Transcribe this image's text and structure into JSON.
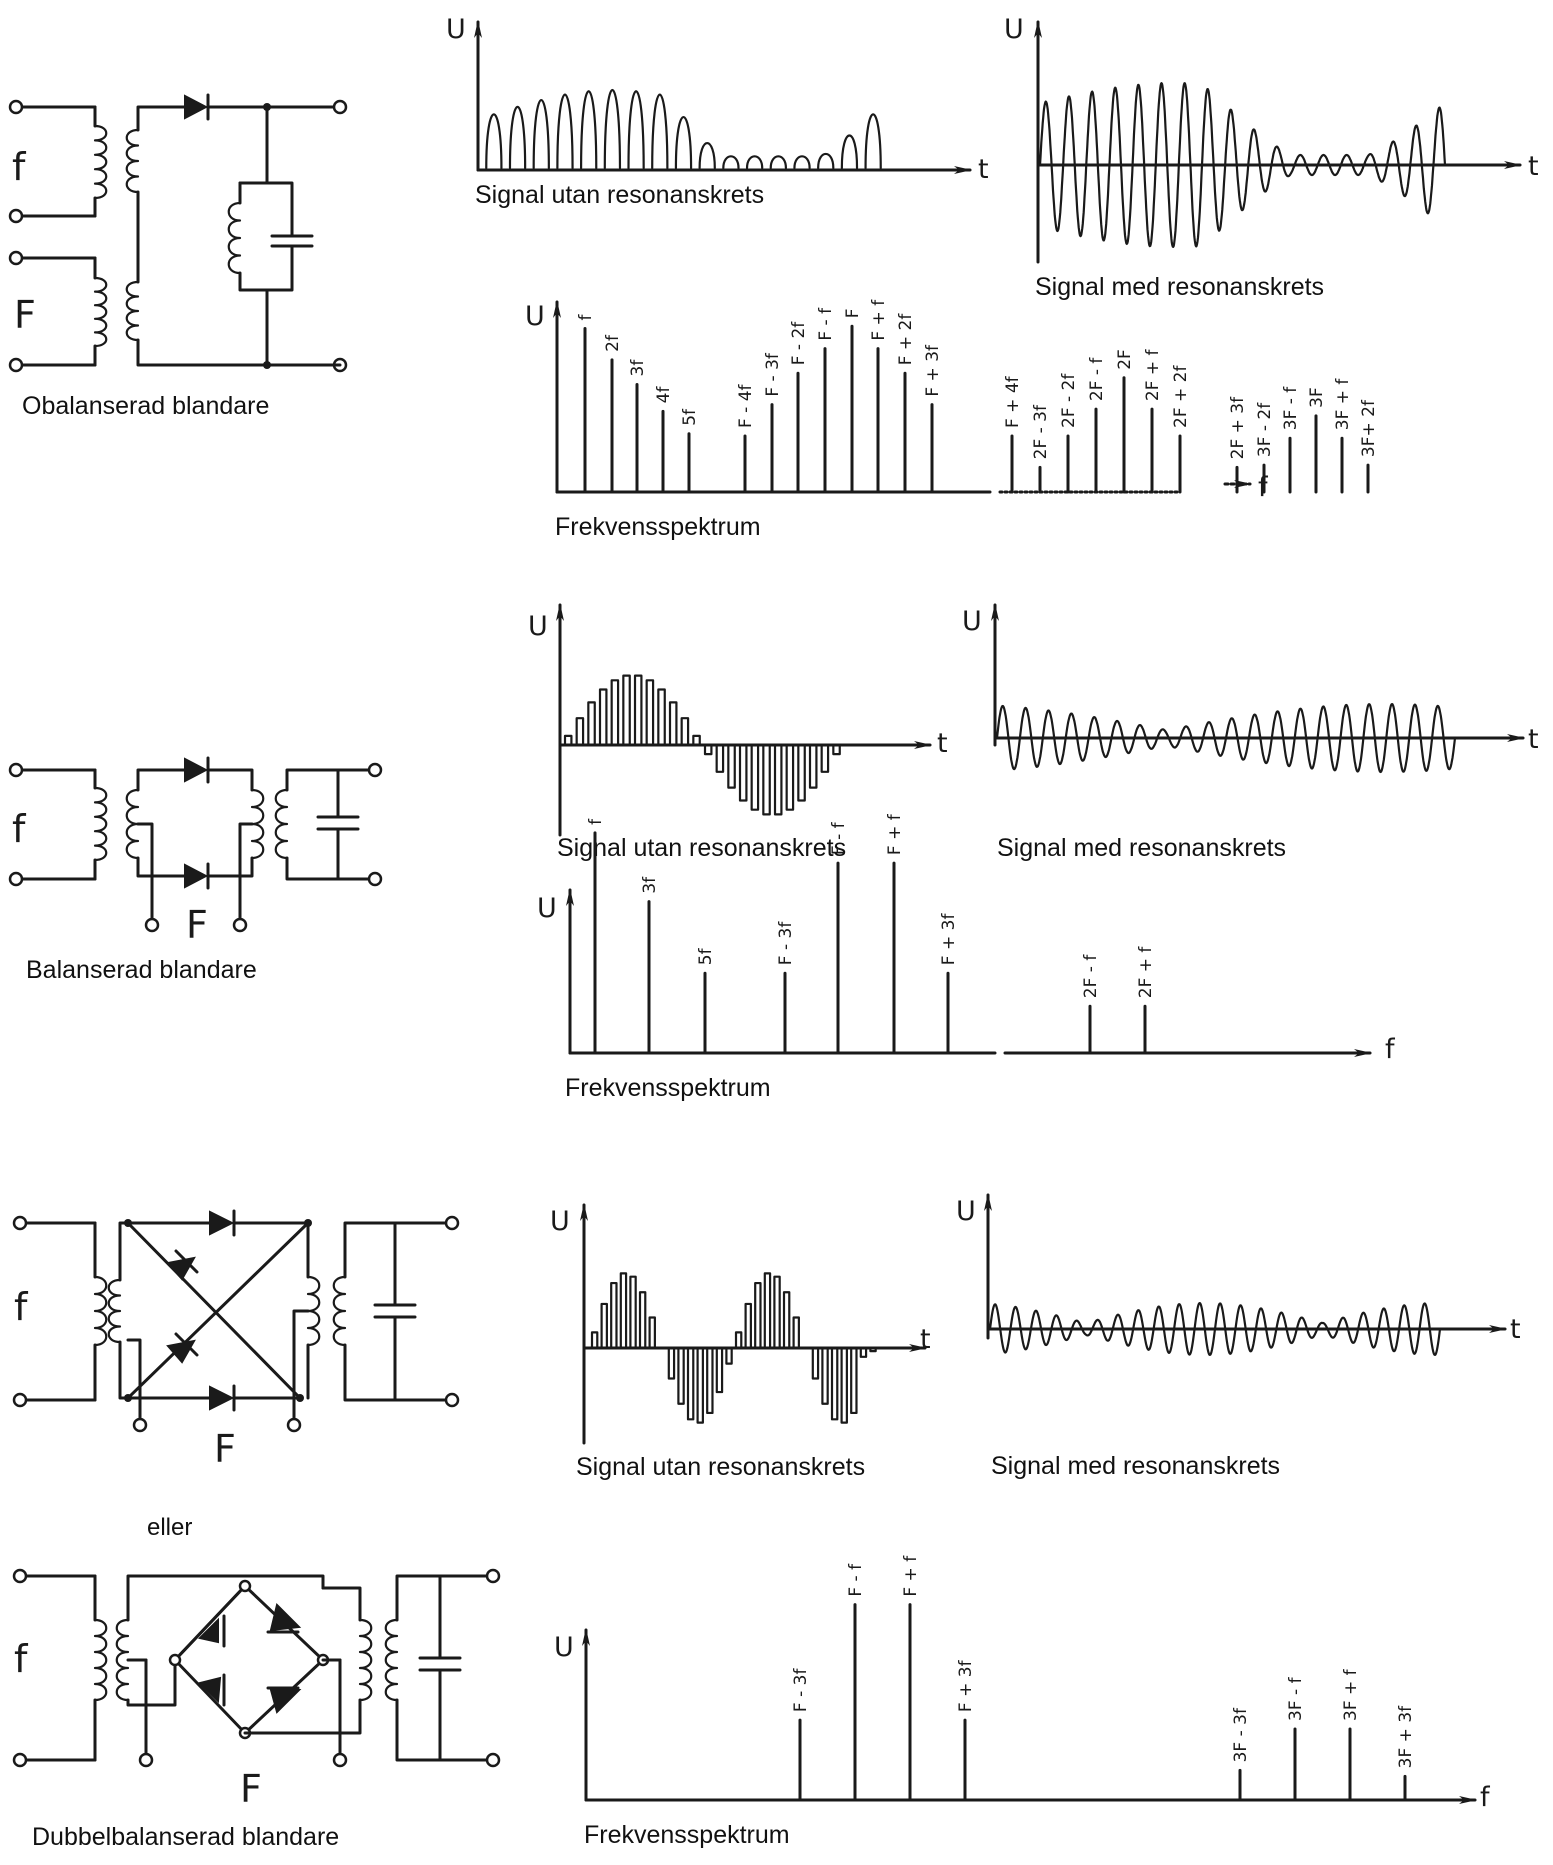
{
  "sections": [
    {
      "circuit": {
        "title": "Obalanserad blandare",
        "input_small": "f",
        "input_large": "F"
      },
      "signal_without": {
        "caption": "Signal utan resonanskrets",
        "y_axis": "U",
        "x_axis": "t"
      },
      "signal_with": {
        "caption": "Signal med resonanskrets",
        "y_axis": "U",
        "x_axis": "t"
      },
      "spectrum": {
        "caption": "Frekvensspektrum",
        "y_axis": "U",
        "x_axis": "f"
      }
    },
    {
      "circuit": {
        "title": "Balanserad blandare",
        "input_small": "f",
        "input_large": "F"
      },
      "signal_without": {
        "caption": "Signal utan resonanskrets",
        "y_axis": "U",
        "x_axis": "t"
      },
      "signal_with": {
        "caption": "Signal med resonanskrets",
        "y_axis": "U",
        "x_axis": "t"
      },
      "spectrum": {
        "caption": "Frekvensspektrum",
        "y_axis": "U",
        "x_axis": "f"
      }
    },
    {
      "circuit": {
        "input_small": "f",
        "input_large": "F"
      },
      "signal_without": {
        "caption": "Signal utan resonanskrets",
        "y_axis": "U",
        "x_axis": "t"
      },
      "signal_with": {
        "caption": "Signal med resonanskrets",
        "y_axis": "U",
        "x_axis": "t"
      },
      "separator": "eller"
    },
    {
      "circuit": {
        "title": "Dubbelbalanserad blandare",
        "input_small": "f",
        "input_large": "F"
      },
      "spectrum": {
        "caption": "Frekvensspektrum",
        "y_axis": "U",
        "x_axis": "f"
      }
    }
  ],
  "spectra": [
    {
      "lines": [
        {
          "label": "f",
          "level": 0.73
        },
        {
          "label": "2f",
          "level": 0.59
        },
        {
          "label": "3f",
          "level": 0.48
        },
        {
          "label": "4f",
          "level": 0.36
        },
        {
          "label": "5f",
          "level": 0.26
        },
        {
          "label": "F - 4f",
          "level": 0.25
        },
        {
          "label": "F - 3f",
          "level": 0.39
        },
        {
          "label": "F - 2f",
          "level": 0.53
        },
        {
          "label": "F - f",
          "level": 0.64
        },
        {
          "label": "F",
          "level": 0.74
        },
        {
          "label": "F + f",
          "level": 0.64
        },
        {
          "label": "F + 2f",
          "level": 0.53
        },
        {
          "label": "F + 3f",
          "level": 0.39
        },
        {
          "label": "F + 4f",
          "level": 0.25
        },
        {
          "label": "2F - 3f",
          "level": 0.11
        },
        {
          "label": "2F - 2f",
          "level": 0.25
        },
        {
          "label": "2F - f",
          "level": 0.37
        },
        {
          "label": "2F",
          "level": 0.51
        },
        {
          "label": "2F + f",
          "level": 0.37
        },
        {
          "label": "2F + 2f",
          "level": 0.25
        },
        {
          "label": "2F + 3f",
          "level": 0.11
        },
        {
          "label": "3F - 2f",
          "level": 0.12
        },
        {
          "label": "3F - f",
          "level": 0.24
        },
        {
          "label": "3F",
          "level": 0.34
        },
        {
          "label": "3F + f",
          "level": 0.24
        },
        {
          "label": "3F+ 2f",
          "level": 0.12
        }
      ]
    },
    {
      "lines": [
        {
          "label": "f",
          "level": 0.8
        },
        {
          "label": "3f",
          "level": 0.55
        },
        {
          "label": "5f",
          "level": 0.29
        },
        {
          "label": "F - 3f",
          "level": 0.29
        },
        {
          "label": "F - f",
          "level": 0.69
        },
        {
          "label": "F + f",
          "level": 0.69
        },
        {
          "label": "F + 3f",
          "level": 0.29
        },
        {
          "label": "2F - f",
          "level": 0.17
        },
        {
          "label": "2F + f",
          "level": 0.17
        }
      ]
    },
    {
      "lines": [
        {
          "label": "F - 3f",
          "level": 0.27
        },
        {
          "label": "F - f",
          "level": 0.66
        },
        {
          "label": "F + f",
          "level": 0.66
        },
        {
          "label": "F + 3f",
          "level": 0.27
        },
        {
          "label": "3F - 3f",
          "level": 0.1
        },
        {
          "label": "3F - f",
          "level": 0.24
        },
        {
          "label": "3F + f",
          "level": 0.24
        },
        {
          "label": "3F + 3f",
          "level": 0.08
        }
      ]
    }
  ]
}
